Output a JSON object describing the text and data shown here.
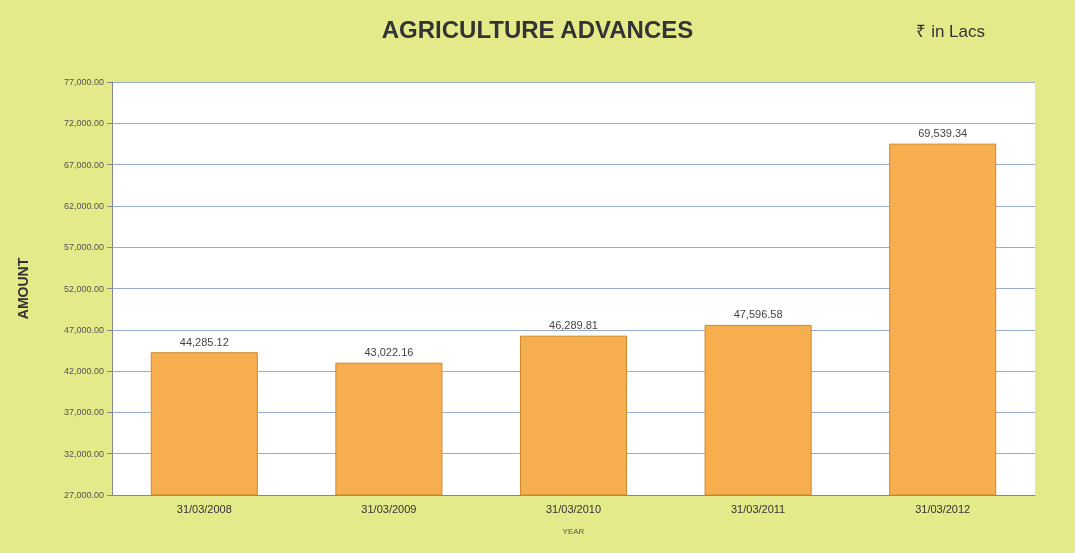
{
  "chart_data": {
    "type": "bar",
    "title": "AGRICULTURE ADVANCES",
    "subtitle": "₹ in Lacs",
    "xlabel": "YEAR",
    "ylabel": "AMOUNT",
    "categories": [
      "31/03/2008",
      "31/03/2009",
      "31/03/2010",
      "31/03/2011",
      "31/03/2012"
    ],
    "values": [
      44285.12,
      43022.16,
      46289.81,
      47596.58,
      69539.34
    ],
    "value_labels": [
      "44,285.12",
      "43,022.16",
      "46,289.81",
      "47,596.58",
      "69,539.34"
    ],
    "color": "#f6ae4e",
    "ylim": [
      27000,
      77000
    ],
    "yticks": [
      {
        "value": 27000,
        "label": "27,000.00"
      },
      {
        "value": 32000,
        "label": "32,000.00"
      },
      {
        "value": 37000,
        "label": "37,000.00"
      },
      {
        "value": 42000,
        "label": "42,000.00"
      },
      {
        "value": 47000,
        "label": "47,000.00"
      },
      {
        "value": 52000,
        "label": "52,000.00"
      },
      {
        "value": 57000,
        "label": "57,000.00"
      },
      {
        "value": 62000,
        "label": "62,000.00"
      },
      {
        "value": 67000,
        "label": "67,000.00"
      },
      {
        "value": 72000,
        "label": "72,000.00"
      },
      {
        "value": 77000,
        "label": "77,000.00"
      }
    ],
    "grid": "y"
  }
}
